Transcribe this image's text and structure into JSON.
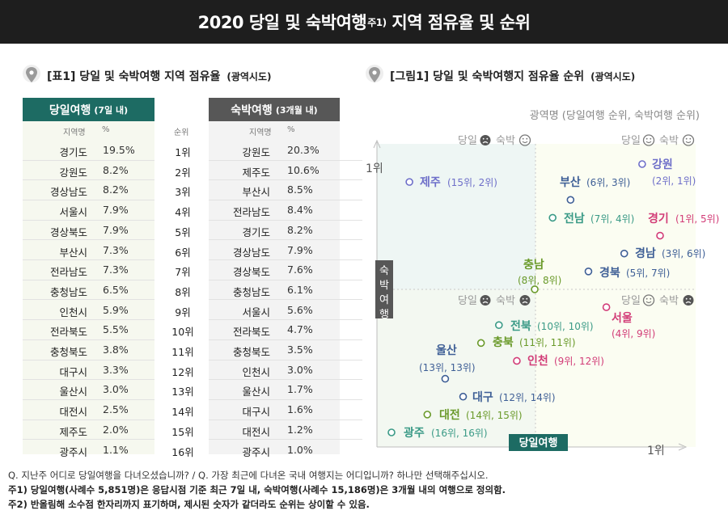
{
  "header": {
    "title_main": "2020 당일 및 숙박여행",
    "title_sup": "주1)",
    "title_rest": " 지역 점유율 및 순위"
  },
  "table_section": {
    "title": "[표1] 당일 및 숙박여행 지역 점유율",
    "subtitle": "(광역시도)"
  },
  "chart_section": {
    "title": "[그림1] 당일 및 숙박여행지 점유율 순위",
    "subtitle": "(광역시도)"
  },
  "table": {
    "day_header": "당일여행",
    "day_header_sub": "(7일 내)",
    "stay_header": "숙박여행",
    "stay_header_sub": "(3개월 내)",
    "col_region": "지역명",
    "col_pct": "%",
    "col_rank": "순위",
    "rows": [
      {
        "day_region": "경기도",
        "day_pct": "19.5%",
        "rank": "1위",
        "stay_region": "강원도",
        "stay_pct": "20.3%"
      },
      {
        "day_region": "강원도",
        "day_pct": "8.2%",
        "rank": "2위",
        "stay_region": "제주도",
        "stay_pct": "10.6%"
      },
      {
        "day_region": "경상남도",
        "day_pct": "8.2%",
        "rank": "3위",
        "stay_region": "부산시",
        "stay_pct": "8.5%"
      },
      {
        "day_region": "서울시",
        "day_pct": "7.9%",
        "rank": "4위",
        "stay_region": "전라남도",
        "stay_pct": "8.4%"
      },
      {
        "day_region": "경상북도",
        "day_pct": "7.9%",
        "rank": "5위",
        "stay_region": "경기도",
        "stay_pct": "8.2%"
      },
      {
        "day_region": "부산시",
        "day_pct": "7.3%",
        "rank": "6위",
        "stay_region": "경상남도",
        "stay_pct": "7.9%"
      },
      {
        "day_region": "전라남도",
        "day_pct": "7.3%",
        "rank": "7위",
        "stay_region": "경상북도",
        "stay_pct": "7.6%"
      },
      {
        "day_region": "충청남도",
        "day_pct": "6.5%",
        "rank": "8위",
        "stay_region": "충청남도",
        "stay_pct": "6.1%"
      },
      {
        "day_region": "인천시",
        "day_pct": "5.9%",
        "rank": "9위",
        "stay_region": "서울시",
        "stay_pct": "5.6%"
      },
      {
        "day_region": "전라북도",
        "day_pct": "5.5%",
        "rank": "10위",
        "stay_region": "전라북도",
        "stay_pct": "4.7%"
      },
      {
        "day_region": "충청북도",
        "day_pct": "3.8%",
        "rank": "11위",
        "stay_region": "충청북도",
        "stay_pct": "3.5%"
      },
      {
        "day_region": "대구시",
        "day_pct": "3.3%",
        "rank": "12위",
        "stay_region": "인천시",
        "stay_pct": "3.0%"
      },
      {
        "day_region": "울산시",
        "day_pct": "3.0%",
        "rank": "13위",
        "stay_region": "울산시",
        "stay_pct": "1.7%"
      },
      {
        "day_region": "대전시",
        "day_pct": "2.5%",
        "rank": "14위",
        "stay_region": "대구시",
        "stay_pct": "1.6%"
      },
      {
        "day_region": "제주도",
        "day_pct": "2.0%",
        "rank": "15위",
        "stay_region": "대전시",
        "stay_pct": "1.2%"
      },
      {
        "day_region": "광주시",
        "day_pct": "1.1%",
        "rank": "16위",
        "stay_region": "광주시",
        "stay_pct": "1.0%"
      }
    ]
  },
  "chart_data": {
    "type": "scatter",
    "caption": "광역명 (당일여행 순위, 숙박여행 순위)",
    "xlabel": "당일여행",
    "ylabel": "숙박여행",
    "x_tick": "1위",
    "y_tick": "1위",
    "x_direction": "rank 16 at left, rank 1 at right",
    "y_direction": "rank 16 at bottom, rank 1 at top",
    "quadrants": {
      "top_left": [
        "당일",
        "숙박"
      ],
      "top_right": [
        "당일",
        "숙박"
      ],
      "bottom_left": [
        "당일",
        "숙박"
      ],
      "bottom_right": [
        "당일",
        "숙박"
      ]
    },
    "points": [
      {
        "name": "강원",
        "label": "(2위, 1위)",
        "day_rank": 2,
        "stay_rank": 1,
        "color": "#6e6fc9"
      },
      {
        "name": "제주",
        "label": "(15위, 2위)",
        "day_rank": 15,
        "stay_rank": 2,
        "color": "#6e6fc9"
      },
      {
        "name": "부산",
        "label": "(6위, 3위)",
        "day_rank": 6,
        "stay_rank": 3,
        "color": "#3e5f96"
      },
      {
        "name": "전남",
        "label": "(7위, 4위)",
        "day_rank": 7,
        "stay_rank": 4,
        "color": "#3a9a86"
      },
      {
        "name": "경기",
        "label": "(1위, 5위)",
        "day_rank": 1,
        "stay_rank": 5,
        "color": "#d23c77"
      },
      {
        "name": "경남",
        "label": "(3위, 6위)",
        "day_rank": 3,
        "stay_rank": 6,
        "color": "#3e5f96"
      },
      {
        "name": "경북",
        "label": "(5위, 7위)",
        "day_rank": 5,
        "stay_rank": 7,
        "color": "#3e5f96"
      },
      {
        "name": "충남",
        "label": "(8위, 8위)",
        "day_rank": 8,
        "stay_rank": 8,
        "color": "#6a9a2a"
      },
      {
        "name": "서울",
        "label": "(4위, 9위)",
        "day_rank": 4,
        "stay_rank": 9,
        "color": "#d23c77"
      },
      {
        "name": "전북",
        "label": "(10위, 10위)",
        "day_rank": 10,
        "stay_rank": 10,
        "color": "#3a9a86"
      },
      {
        "name": "충북",
        "label": "(11위, 11위)",
        "day_rank": 11,
        "stay_rank": 11,
        "color": "#6a9a2a"
      },
      {
        "name": "인천",
        "label": "(9위, 12위)",
        "day_rank": 9,
        "stay_rank": 12,
        "color": "#d23c77"
      },
      {
        "name": "울산",
        "label": "(13위, 13위)",
        "day_rank": 13,
        "stay_rank": 13,
        "color": "#3e5f96"
      },
      {
        "name": "대구",
        "label": "(12위, 14위)",
        "day_rank": 12,
        "stay_rank": 14,
        "color": "#3e5f96"
      },
      {
        "name": "대전",
        "label": "(14위, 15위)",
        "day_rank": 14,
        "stay_rank": 15,
        "color": "#6a9a2a"
      },
      {
        "name": "광주",
        "label": "(16위, 16위)",
        "day_rank": 16,
        "stay_rank": 16,
        "color": "#3a9a86"
      }
    ]
  },
  "notes": {
    "q": "Q. 지난주 어디로 당일여행을 다녀오셨습니까? / Q. 가장 최근에 다녀온 국내 여행지는 어디입니까? 하나만 선택해주십시오.",
    "n1": "주1) 당일여행(사례수 5,851명)은 응답시점 기준 최근 7일 내, 숙박여행(사례수 15,186명)은 3개월 내의 여행으로 정의함.",
    "n2": "주2) 반올림해 소수점 한자리까지 표기하며, 제시된 숫자가 같더라도 순위는 상이할 수 있음."
  }
}
